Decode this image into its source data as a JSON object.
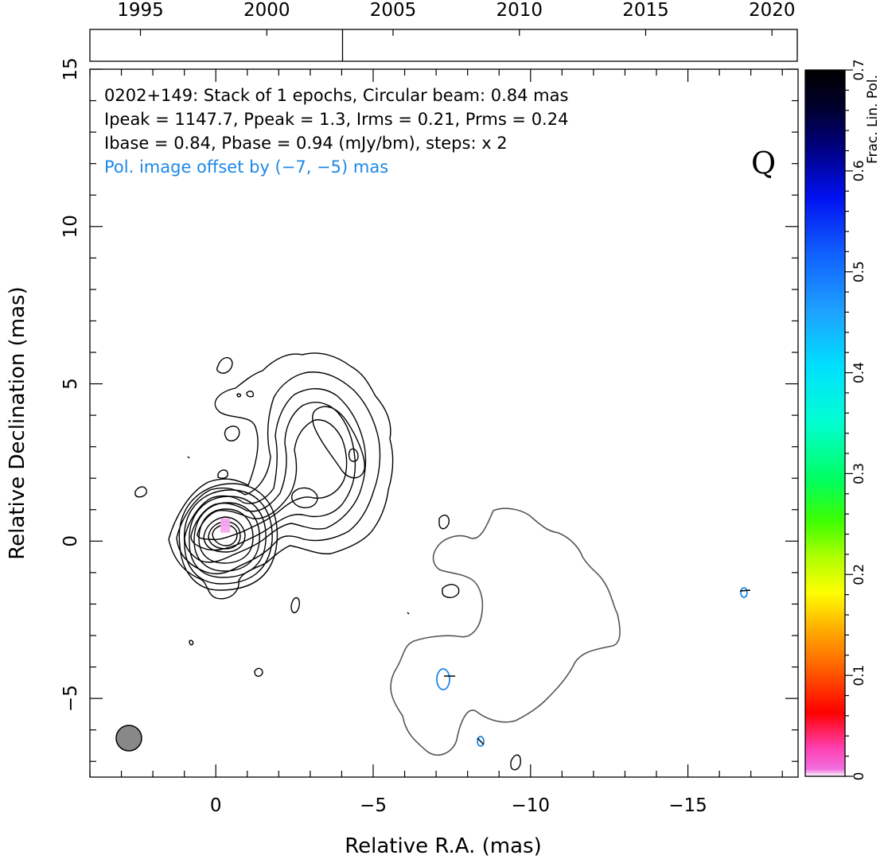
{
  "chart_data": {
    "type": "contour",
    "xlabel": "Relative R.A. (mas)",
    "ylabel": "Relative Declination (mas)",
    "xlim": [
      4,
      -18.5
    ],
    "ylim": [
      -7.5,
      15
    ],
    "x_ticks": [
      0,
      -5,
      -10,
      -15
    ],
    "x_tick_labels": [
      "0",
      "−5",
      "−10",
      "−15"
    ],
    "y_ticks": [
      -5,
      0,
      5,
      10,
      15
    ],
    "y_tick_labels": [
      "−5",
      "0",
      "5",
      "10",
      "15"
    ],
    "annotation_lines": [
      "0202+149: Stack of 1 epochs, Circular beam: 0.84 mas",
      "Ipeak = 1147.7, Ppeak = 1.3, Irms = 0.21, Prms = 0.24",
      "Ibase = 0.84, Pbase = 0.94 (mJy/bm), steps: x 2"
    ],
    "pol_offset_note": "Pol. image offset by (−7, −5) mas",
    "band_label": "Q",
    "colorbar": {
      "label": "Frac. Lin. Pol.",
      "range": [
        0,
        0.7
      ],
      "ticks": [
        0,
        0.1,
        0.2,
        0.3,
        0.4,
        0.5,
        0.6,
        0.7
      ],
      "tick_labels": [
        "0",
        "0.1",
        "0.2",
        "0.3",
        "0.4",
        "0.5",
        "0.6",
        "0.7"
      ]
    },
    "timeline": {
      "range": [
        1993,
        2021
      ],
      "ticks": [
        1995,
        2000,
        2005,
        2010,
        2015,
        2020
      ],
      "tick_labels": [
        "1995",
        "2000",
        "2005",
        "2010",
        "2015",
        "2020"
      ],
      "epochs": [
        2003.0
      ]
    },
    "beam_diameter_mas": 0.84,
    "core": {
      "x": -0.3,
      "y": 0.5
    },
    "contour_colors": {
      "stokes_i": "#000000",
      "pol_outline": "#555555",
      "pol_contours": "#1e88e5",
      "beam_fill": "#888888",
      "core_pol": "#f7a6f0"
    }
  }
}
